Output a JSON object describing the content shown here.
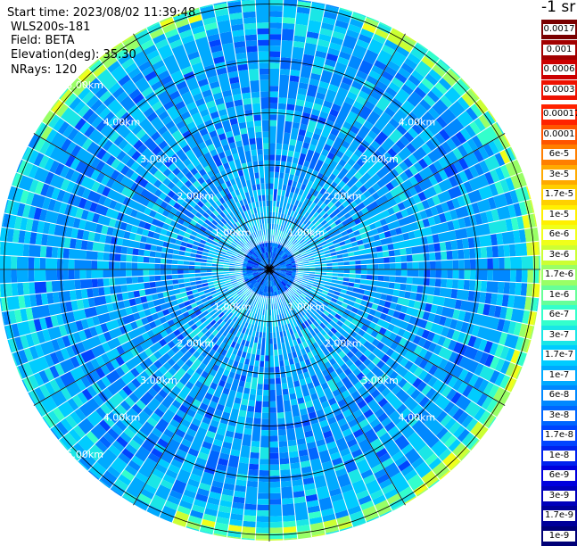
{
  "header": {
    "start_time": "Start time: 2023/08/02 11:39:48",
    "instrument": "WLS200s-181",
    "field": "Field: BETA",
    "elevation": "Elevation(deg): 35.30",
    "nrays": "NRays: 120"
  },
  "colorbar": {
    "unit_label": "-1 sr",
    "upper": [
      {
        "label": "0.0017",
        "color": "#7a0000"
      },
      {
        "label": "0.001",
        "color": "#a30000"
      },
      {
        "label": "0.0006",
        "color": "#cc0000"
      },
      {
        "label": "0.0003",
        "color": "#ee1100"
      }
    ],
    "lower": [
      {
        "label": "0.00017",
        "color": "#ff2200"
      },
      {
        "label": "0.0001",
        "color": "#ff5500"
      },
      {
        "label": "6e-5",
        "color": "#ff7f00"
      },
      {
        "label": "3e-5",
        "color": "#ffaa00"
      },
      {
        "label": "1.7e-5",
        "color": "#ffd000"
      },
      {
        "label": "1e-5",
        "color": "#fff000"
      },
      {
        "label": "6e-6",
        "color": "#f0ff1a"
      },
      {
        "label": "3e-6",
        "color": "#ccff33"
      },
      {
        "label": "1.7e-6",
        "color": "#99ff66"
      },
      {
        "label": "1e-6",
        "color": "#66ff99"
      },
      {
        "label": "6e-7",
        "color": "#33ffcc"
      },
      {
        "label": "3e-7",
        "color": "#1ae6e6"
      },
      {
        "label": "1.7e-7",
        "color": "#00ccff"
      },
      {
        "label": "1e-7",
        "color": "#00aaff"
      },
      {
        "label": "6e-8",
        "color": "#0088ff"
      },
      {
        "label": "3e-8",
        "color": "#0066ff"
      },
      {
        "label": "1.7e-8",
        "color": "#0044ff"
      },
      {
        "label": "1e-8",
        "color": "#0022ee"
      },
      {
        "label": "6e-9",
        "color": "#0000dd"
      },
      {
        "label": "3e-9",
        "color": "#0000bb"
      },
      {
        "label": "1.7e-9",
        "color": "#000099"
      },
      {
        "label": "1e-9",
        "color": "#000077"
      }
    ]
  },
  "chart_data": {
    "type": "heatmap",
    "projection": "polar-ppi",
    "field": "BETA",
    "elevation_deg": 35.3,
    "n_rays": 120,
    "range_rings_km": [
      1.0,
      2.0,
      3.0,
      4.0,
      5.0
    ],
    "ring_label_texts": [
      "1.00km",
      "2.00km",
      "3.00km",
      "4.00km",
      "5.00km"
    ],
    "azimuth_spokes_deg": [
      0,
      30,
      60,
      90,
      120,
      150,
      180,
      210,
      240,
      270,
      300,
      330
    ],
    "dominant_levels": [
      "1e-8",
      "1.7e-8",
      "3e-8",
      "6e-8",
      "1e-7",
      "1.7e-7",
      "3e-7"
    ],
    "grid": true
  }
}
